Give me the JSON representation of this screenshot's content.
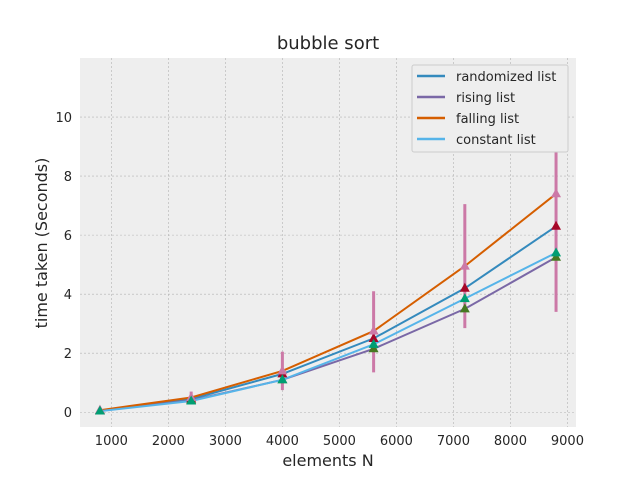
{
  "chart_data": {
    "type": "line",
    "title": "bubble sort",
    "xlabel": "elements N",
    "ylabel": "time taken (Seconds)",
    "xlim": [
      450,
      9150
    ],
    "ylim": [
      -0.5,
      12.0
    ],
    "xticks": [
      1000,
      2000,
      3000,
      4000,
      5000,
      6000,
      7000,
      8000,
      9000
    ],
    "yticks": [
      0,
      2,
      4,
      6,
      8,
      10
    ],
    "grid": true,
    "legend_position": "top-right",
    "x": [
      800,
      2400,
      4000,
      5600,
      7200,
      8800
    ],
    "series": [
      {
        "name": "randomized list",
        "color": "#348ABD",
        "marker_color": "#A60628",
        "values": [
          0.05,
          0.45,
          1.3,
          2.5,
          4.2,
          6.3
        ]
      },
      {
        "name": "rising list",
        "color": "#7A68A6",
        "marker_color": "#467821",
        "values": [
          0.05,
          0.4,
          1.1,
          2.15,
          3.5,
          5.25
        ]
      },
      {
        "name": "falling list",
        "color": "#D55E00",
        "marker_color": "#CC79A7",
        "values": [
          0.07,
          0.5,
          1.4,
          2.75,
          4.95,
          7.4
        ]
      },
      {
        "name": "constant list",
        "color": "#56B4E9",
        "marker_color": "#009E73",
        "values": [
          0.04,
          0.38,
          1.1,
          2.3,
          3.85,
          5.4
        ]
      }
    ],
    "error_bars": {
      "color": "#CC79A7",
      "x": [
        800,
        2400,
        4000,
        5600,
        7200,
        8800
      ],
      "low": [
        0.0,
        0.3,
        0.75,
        1.35,
        2.85,
        3.4
      ],
      "high": [
        0.1,
        0.7,
        2.05,
        4.1,
        7.05,
        11.4
      ]
    }
  }
}
